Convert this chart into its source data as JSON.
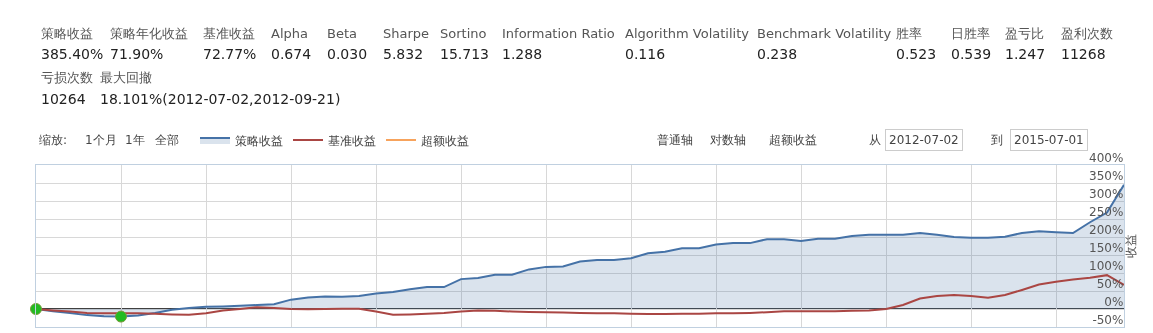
{
  "chart_data": {
    "type": "area",
    "ylabel": "收益",
    "annotations": [
      "策略收益",
      "385.40%",
      "策略年化收益",
      "71.90%",
      "基准收益",
      "72.77%",
      "Alpha",
      "0.674",
      "Beta",
      "0.030",
      "Sharpe",
      "5.832",
      "Sortino",
      "15.713",
      "Information Ratio",
      "1.288",
      "Algorithm Volatility",
      "0.116",
      "Benchmark Volatility",
      "0.238",
      "胜率",
      "0.523",
      "日胜率",
      "0.539",
      "盈亏比",
      "1.247",
      "盈利次数",
      "11268",
      "亏损次数",
      "10264",
      "最大回撤",
      "18.101%(2012-07-02,2012-09-21)",
      "缩放:",
      "1个月",
      "1年",
      "全部",
      "普通轴",
      "对数轴",
      "超额收益",
      "从",
      "2012-07-02",
      "到",
      "2015-07-01"
    ],
    "categories": [
      null,
      null,
      null,
      null,
      null,
      null,
      null,
      null,
      null,
      null,
      null,
      null,
      null,
      null,
      null,
      null,
      null,
      null,
      null,
      null,
      null,
      null,
      null,
      null,
      null,
      null,
      null,
      null,
      null,
      null,
      null,
      null,
      null,
      null,
      null,
      null,
      null,
      null,
      null,
      null,
      null,
      null,
      null,
      null,
      null,
      null,
      null,
      null,
      null,
      null,
      null,
      null,
      null,
      null,
      null,
      null,
      null,
      null,
      null,
      null,
      null,
      null,
      null,
      null,
      null
    ],
    "series": [
      {
        "name": "策略收益",
        "color": "#4572a7",
        "values": [
          0,
          -6,
          -11,
          -17,
          -20,
          -21,
          -18,
          -11,
          -2,
          3,
          6,
          7,
          9,
          11,
          13,
          26,
          32,
          35,
          34,
          36,
          43,
          47,
          55,
          61,
          61,
          83,
          86,
          95,
          95,
          110,
          117,
          118,
          132,
          136,
          136,
          141,
          155,
          159,
          169,
          169,
          179,
          183,
          183,
          194,
          194,
          189,
          195,
          195,
          203,
          206,
          206,
          206,
          211,
          206,
          200,
          198,
          198,
          201,
          211,
          216,
          213,
          211,
          241,
          268,
          345
        ]
      },
      {
        "name": "基准收益",
        "type": "line",
        "color": "#aa4643",
        "values": [
          0,
          -4,
          -7,
          -11,
          -12,
          -12,
          -12,
          -13,
          -15,
          -16,
          -12,
          -4,
          0,
          5,
          3,
          0,
          -1,
          0,
          1,
          1,
          -7,
          -16,
          -15,
          -13,
          -11,
          -7,
          -4,
          -5,
          -7,
          -8,
          -9,
          -10,
          -11,
          -12,
          -12,
          -13,
          -14,
          -14,
          -13,
          -13,
          -12,
          -12,
          -11,
          -9,
          -6,
          -6,
          -6,
          -6,
          -5,
          -4,
          0,
          11,
          29,
          36,
          39,
          36,
          31,
          39,
          53,
          68,
          76,
          82,
          87,
          94,
          67
        ]
      },
      {
        "name": "超额收益",
        "type": "line",
        "color": "#f7a35c",
        "values": [
          null,
          null,
          null,
          null,
          null,
          null,
          null,
          null,
          null,
          null,
          null,
          null,
          null,
          null,
          null,
          null,
          null,
          null,
          null,
          null,
          null,
          null,
          null,
          null,
          null,
          null,
          null,
          null,
          null,
          null,
          null,
          null,
          null,
          null,
          null,
          null,
          null,
          null,
          null,
          null,
          null,
          null,
          null,
          null,
          null,
          null,
          null,
          null,
          null,
          null,
          null,
          null,
          null,
          null,
          null,
          null,
          null,
          null,
          null,
          null,
          null,
          null,
          null,
          null,
          null
        ]
      },
      {
        "type": "scatter",
        "color": "#22bb22",
        "marker": "circle",
        "values": [
          0,
          null,
          null,
          null,
          null,
          -21,
          null,
          null,
          null,
          null,
          null,
          null,
          null,
          null,
          null,
          null,
          null,
          null,
          null,
          null,
          null,
          null,
          null,
          null,
          null,
          null,
          null,
          null,
          null,
          null,
          null,
          null,
          null,
          null,
          null,
          null,
          null,
          null,
          null,
          null,
          null,
          null,
          null,
          null,
          null,
          null,
          null,
          null,
          null,
          null,
          null,
          null,
          null,
          null,
          null,
          null,
          null,
          null,
          null,
          null,
          null,
          null,
          null,
          null,
          null
        ]
      }
    ],
    "ylim": [
      -50,
      400
    ],
    "yticks": [
      {
        "value": -50,
        "label": "-50%"
      },
      {
        "value": 0,
        "label": "0%"
      },
      {
        "value": 50,
        "label": "50%"
      },
      {
        "value": 100,
        "label": "100%"
      },
      {
        "value": 150,
        "label": "150%"
      },
      {
        "value": 200,
        "label": "200%"
      },
      {
        "value": 250,
        "label": "250%"
      },
      {
        "value": 300,
        "label": "300%"
      },
      {
        "value": 350,
        "label": "350%"
      },
      {
        "value": 400,
        "label": "400%"
      }
    ],
    "ref_lines": [
      {
        "axis": "y",
        "value": 0,
        "color": "#000000"
      }
    ],
    "grid": true,
    "legend": "top left",
    "tick_labels": "y",
    "marker": "none",
    "line_style": "solid"
  }
}
